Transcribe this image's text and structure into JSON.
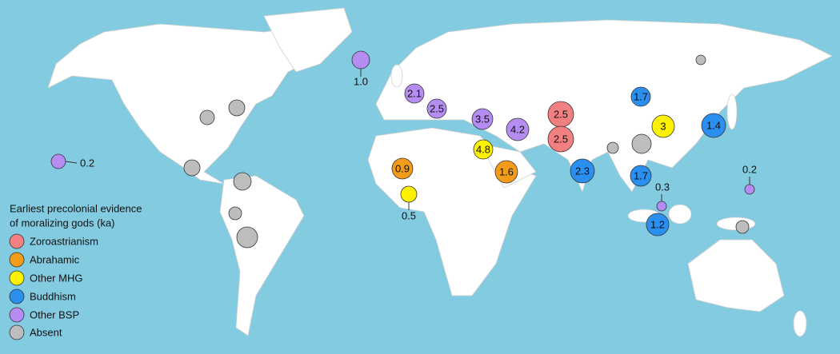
{
  "legend": {
    "title": [
      "Earliest precolonial evidence",
      "of moralizing gods (ka)"
    ],
    "items": [
      "Zoroastrianism",
      "Abrahamic",
      "Other MHG",
      "Buddhism",
      "Other BSP",
      "Absent"
    ]
  },
  "markers": [
    "1.0",
    "0.2",
    "2.1",
    "2.5",
    "3.5",
    "4.2",
    "4.8",
    "0.9",
    "1.6",
    "0.5",
    "2.5",
    "2.5",
    "1.7",
    "3",
    "1.4",
    "2.3",
    "1.7",
    "0.3",
    "1.2",
    "0.2"
  ]
}
